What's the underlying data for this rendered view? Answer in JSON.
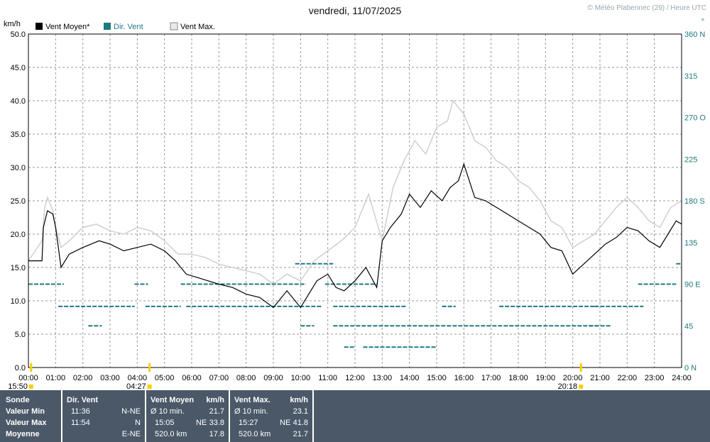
{
  "chart_data": {
    "type": "line",
    "title": "vendredi, 11/07/2025",
    "credit": "© Météo Plabennec (29) / Heure UTC",
    "ylabel_left": "km/h",
    "ylabel_right": "°",
    "ylim": [
      0,
      50
    ],
    "yticks_left": [
      "0.0",
      "5.0",
      "10.0",
      "15.0",
      "20.0",
      "25.0",
      "30.0",
      "35.0",
      "40.0",
      "45.0",
      "50.0"
    ],
    "yticks_right": [
      "0 N",
      "45",
      "90 E",
      "135",
      "180 S",
      "225",
      "270 O",
      "315",
      "360 N"
    ],
    "xlim": [
      0,
      24
    ],
    "xticks": [
      "00:00",
      "01:00",
      "02:00",
      "03:00",
      "04:00",
      "05:00",
      "06:00",
      "07:00",
      "08:00",
      "09:00",
      "10:00",
      "11:00",
      "12:00",
      "13:00",
      "14:00",
      "15:00",
      "16:00",
      "17:00",
      "18:00",
      "19:00",
      "20:00",
      "21:00",
      "22:00",
      "23:00",
      "24:00"
    ],
    "ephemeris": [
      {
        "label": "15:50",
        "hour": 0.1
      },
      {
        "label": "04:27",
        "hour": 4.45
      },
      {
        "label": "20:18",
        "hour": 20.3
      }
    ],
    "legend": [
      "Vent Moyen*",
      "Dir. Vent",
      "Vent Max."
    ],
    "colors": {
      "mean": "#000000",
      "gust": "#cfcfcf",
      "dir": "#1d7a80",
      "grid": "#9a9a9a",
      "marker": "#f5d000"
    },
    "series_mean": {
      "name": "Vent Moyen*",
      "x": [
        0,
        0.5,
        0.55,
        0.7,
        0.9,
        1.0,
        1.2,
        1.5,
        2.0,
        2.3,
        2.6,
        3.0,
        3.5,
        4.0,
        4.5,
        5.0,
        5.4,
        5.8,
        6.2,
        6.6,
        7.0,
        7.5,
        8.0,
        8.5,
        9.0,
        9.5,
        10.0,
        10.3,
        10.6,
        11.0,
        11.3,
        11.6,
        12.0,
        12.4,
        12.8,
        13.0,
        13.3,
        13.7,
        14.0,
        14.4,
        14.8,
        15.2,
        15.5,
        15.8,
        16.0,
        16.4,
        16.8,
        17.2,
        17.6,
        18.0,
        18.4,
        18.8,
        19.2,
        19.6,
        20.0,
        20.4,
        20.8,
        21.2,
        21.6,
        22.0,
        22.4,
        22.8,
        23.2,
        23.5,
        23.8,
        24.0
      ],
      "y": [
        16.0,
        16.0,
        21.0,
        23.5,
        23.0,
        21.0,
        15.0,
        17.0,
        18.0,
        18.5,
        19.0,
        18.5,
        17.5,
        18.0,
        18.5,
        17.5,
        16.0,
        14.0,
        13.5,
        13.0,
        12.5,
        12.0,
        11.0,
        10.5,
        9.0,
        11.5,
        9.0,
        11.0,
        13.0,
        14.0,
        12.0,
        11.5,
        13.0,
        15.0,
        12.0,
        19.0,
        21.0,
        23.0,
        26.0,
        24.0,
        26.5,
        25.0,
        27.0,
        28.0,
        30.5,
        25.5,
        25.0,
        24.0,
        23.0,
        22.0,
        21.0,
        20.0,
        18.0,
        17.5,
        14.0,
        15.5,
        17.0,
        18.5,
        19.5,
        21.0,
        20.5,
        19.0,
        18.0,
        20.0,
        22.0,
        21.5
      ]
    },
    "series_gust": {
      "name": "Vent Max.",
      "x": [
        0,
        0.5,
        0.6,
        0.7,
        0.9,
        1.0,
        1.2,
        1.5,
        2.0,
        2.5,
        3.0,
        3.5,
        4.0,
        4.5,
        5.0,
        5.5,
        6.0,
        6.5,
        7.0,
        7.5,
        8.0,
        8.5,
        9.0,
        9.5,
        10.0,
        10.5,
        11.0,
        11.5,
        12.0,
        12.5,
        13.0,
        13.4,
        13.8,
        14.2,
        14.6,
        15.0,
        15.4,
        15.6,
        16.0,
        16.4,
        16.8,
        17.2,
        17.6,
        18.0,
        18.4,
        18.8,
        19.2,
        19.6,
        20.0,
        20.4,
        20.8,
        21.2,
        21.6,
        22.0,
        22.4,
        22.8,
        23.2,
        23.6,
        24.0
      ],
      "y": [
        16.0,
        19.0,
        24.0,
        25.5,
        23.5,
        21.0,
        18.0,
        19.0,
        21.0,
        21.5,
        20.5,
        20.0,
        21.0,
        20.5,
        19.0,
        17.0,
        17.0,
        16.5,
        15.5,
        15.0,
        14.5,
        14.0,
        12.5,
        14.0,
        13.0,
        16.0,
        17.5,
        19.0,
        21.0,
        26.0,
        19.0,
        27.0,
        31.0,
        34.0,
        32.0,
        36.0,
        37.0,
        40.0,
        38.0,
        34.0,
        33.0,
        31.0,
        30.0,
        28.0,
        27.0,
        25.0,
        22.0,
        21.0,
        18.0,
        19.0,
        20.0,
        22.0,
        24.0,
        25.5,
        24.0,
        22.0,
        21.0,
        24.0,
        25.0
      ]
    },
    "series_dir": {
      "name": "Dir. Vent",
      "segments": [
        {
          "x0": 0.0,
          "x1": 1.3,
          "deg": 90
        },
        {
          "x0": 1.1,
          "x1": 3.9,
          "deg": 66
        },
        {
          "x0": 2.2,
          "x1": 2.7,
          "deg": 45
        },
        {
          "x0": 3.9,
          "x1": 4.4,
          "deg": 90
        },
        {
          "x0": 4.3,
          "x1": 5.6,
          "deg": 66
        },
        {
          "x0": 5.6,
          "x1": 10.2,
          "deg": 90
        },
        {
          "x0": 5.8,
          "x1": 10.8,
          "deg": 66
        },
        {
          "x0": 9.8,
          "x1": 11.2,
          "deg": 112
        },
        {
          "x0": 10.0,
          "x1": 10.5,
          "deg": 45
        },
        {
          "x0": 10.9,
          "x1": 12.8,
          "deg": 90
        },
        {
          "x0": 11.2,
          "x1": 13.9,
          "deg": 66
        },
        {
          "x0": 11.2,
          "x1": 20.9,
          "deg": 45
        },
        {
          "x0": 11.6,
          "x1": 12.0,
          "deg": 22
        },
        {
          "x0": 12.3,
          "x1": 15.0,
          "deg": 22
        },
        {
          "x0": 15.2,
          "x1": 15.7,
          "deg": 66
        },
        {
          "x0": 17.3,
          "x1": 20.9,
          "deg": 66
        },
        {
          "x0": 20.6,
          "x1": 21.4,
          "deg": 45
        },
        {
          "x0": 20.8,
          "x1": 22.6,
          "deg": 66
        },
        {
          "x0": 22.4,
          "x1": 23.8,
          "deg": 90
        },
        {
          "x0": 23.8,
          "x1": 24.0,
          "deg": 112
        }
      ]
    },
    "grid": true
  },
  "stats": {
    "sonde": {
      "header": "Sonde",
      "rows": [
        "Valeur Min",
        "Valeur Max",
        "Moyenne"
      ]
    },
    "dir": {
      "header": "Dir. Vent",
      "rows": [
        [
          "11:36",
          "N-NE"
        ],
        [
          "11:54",
          "N"
        ],
        [
          "",
          "E-NE"
        ]
      ]
    },
    "mean": {
      "header": "Vent Moyen",
      "unit": "km/h",
      "rows": [
        [
          "Ø 10 min.",
          "",
          "21.7"
        ],
        [
          "15:05",
          "NE",
          "33.8"
        ],
        [
          "520.0 km",
          "",
          "17.8"
        ]
      ]
    },
    "max": {
      "header": "Vent Max.",
      "unit": "km/h",
      "rows": [
        [
          "Ø 10 min.",
          "",
          "23.1"
        ],
        [
          "15:27",
          "NE",
          "41.8"
        ],
        [
          "520.0 km",
          "",
          "21.7"
        ]
      ]
    }
  }
}
